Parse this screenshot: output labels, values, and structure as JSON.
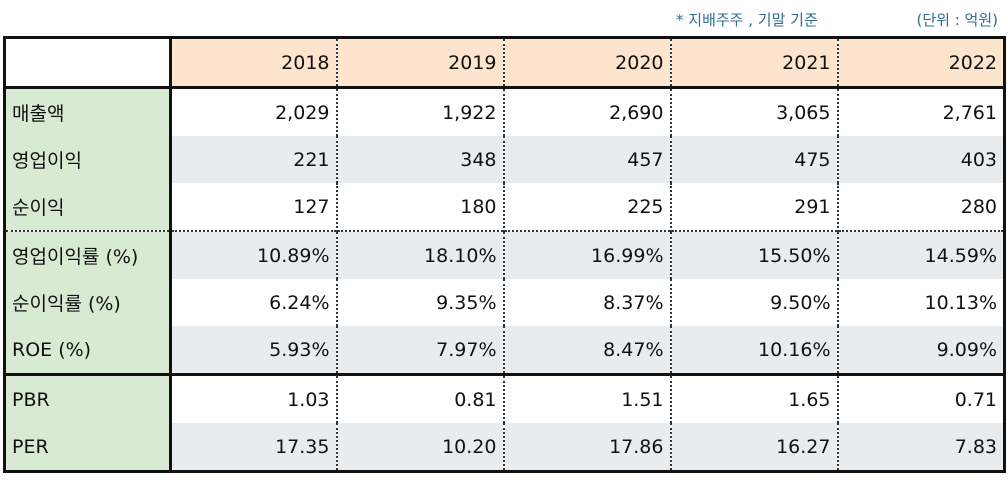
{
  "notes": {
    "basis": "* 지배주주 , 기말 기준",
    "unit": "(단위 : 억원)"
  },
  "table": {
    "years": [
      "2018",
      "2019",
      "2020",
      "2021",
      "2022"
    ],
    "rows": [
      {
        "label": "매출액",
        "values": [
          "2,029",
          "1,922",
          "2,690",
          "3,065",
          "2,761"
        ]
      },
      {
        "label": "영업이익",
        "values": [
          "221",
          "348",
          "457",
          "475",
          "403"
        ]
      },
      {
        "label": "순이익",
        "values": [
          "127",
          "180",
          "225",
          "291",
          "280"
        ]
      },
      {
        "label": "영업이익률 (%)",
        "values": [
          "10.89%",
          "18.10%",
          "16.99%",
          "15.50%",
          "14.59%"
        ]
      },
      {
        "label": "순이익률 (%)",
        "values": [
          "6.24%",
          "9.35%",
          "8.37%",
          "9.50%",
          "10.13%"
        ]
      },
      {
        "label": "ROE (%)",
        "values": [
          "5.93%",
          "7.97%",
          "8.47%",
          "10.16%",
          "9.09%"
        ]
      },
      {
        "label": "PBR",
        "values": [
          "1.03",
          "0.81",
          "1.51",
          "1.65",
          "0.71"
        ]
      },
      {
        "label": "PER",
        "values": [
          "17.35",
          "10.20",
          "17.86",
          "16.27",
          "7.83"
        ]
      }
    ]
  },
  "colors": {
    "header_fill": "#fde4cc",
    "label_fill": "#d9ead3",
    "alt_row_fill": "#e9ecef",
    "note_text": "#2f6f8f"
  }
}
